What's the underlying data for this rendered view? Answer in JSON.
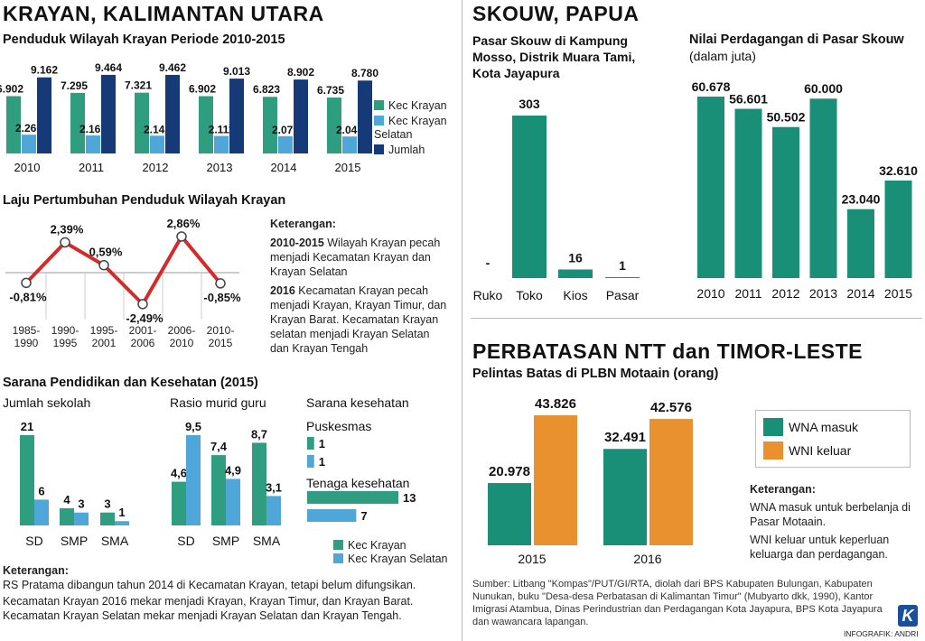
{
  "colors": {
    "green": "#2f9e80",
    "lightblue": "#4fa6d9",
    "navy": "#163a78",
    "orange": "#e8912e",
    "teal": "#1a8f78",
    "red": "#d42a2a"
  },
  "left": {
    "title": "KRAYAN, KALIMANTAN UTARA",
    "pop_title": "Penduduk Wilayah Krayan Periode 2010-2015",
    "growth_title": "Laju Pertumbuhan Penduduk Wilayah Krayan",
    "growth_note_title": "Keterangan:",
    "growth_note_1_year": "2010-2015",
    "growth_note_1_text": " Wilayah Krayan pecah menjadi Kecamatan Krayan dan Krayan Selatan",
    "growth_note_2_year": "2016",
    "growth_note_2_text": " Kecamatan Krayan pecah menjadi Krayan, Krayan Timur, dan Krayan Barat. Kecamatan Krayan selatan menjadi Krayan Selatan dan Krayan Tengah",
    "facility_title": "Sarana Pendidikan dan Kesehatan (2015)",
    "schools_sub": "Jumlah sekolah",
    "ratio_sub": "Rasio murid guru",
    "health_sub": "Sarana kesehatan",
    "puskesmas_label": "Puskesmas",
    "tenaga_label": "Tenaga kesehatan",
    "legend_krayan": "Kec Krayan",
    "legend_krayan_selatan": "Kec Krayan Selatan",
    "bottom_note_title": "Keterangan:",
    "bottom_note_1": "RS Pratama dibangun tahun 2014 di Kecamatan Krayan, tetapi belum difungsikan.",
    "bottom_note_2": "Kecamatan Krayan 2016 mekar menjadi Krayan, Krayan Timur, dan Krayan Barat. Kecamatan Krayan Selatan mekar menjadi Krayan Selatan dan Krayan Tengah."
  },
  "right": {
    "title": "SKOUW, PAPUA",
    "market_title": "Pasar Skouw di Kampung Mosso, Distrik Muara Tami, Kota Jayapura",
    "trade_title": "Nilai Perdagangan di Pasar Skouw",
    "trade_sub": "(dalam juta)",
    "ntt_title": "PERBATASAN NTT dan TIMOR-LESTE",
    "ntt_sub": "Pelintas Batas di PLBN Motaain (orang)",
    "ntt_note_title": "Keterangan:",
    "ntt_note_1": "WNA masuk untuk berbelanja di Pasar Motaain.",
    "ntt_note_2": "WNI keluar untuk keperluan keluarga dan perdagangan.",
    "source": "Sumber: Litbang \"Kompas\"/PUT/GI/RTA, diolah dari BPS Kabupaten Bulungan, Kabupaten Nunukan, buku \"Desa-desa Perbatasan di Kalimantan Timur\" (Mubyarto dkk, 1990), Kantor Imigrasi Atambua, Dinas Perindustrian dan Perdagangan Kota Jayapura, BPS Kota Jayapura dan wawancara lapangan.",
    "credit": "INFOGRAFIK: ANDRI",
    "logo_letter": "K"
  },
  "chart_data": [
    {
      "id": "population",
      "type": "bar",
      "title": "Penduduk Wilayah Krayan Periode 2010-2015",
      "categories": [
        "2010",
        "2011",
        "2012",
        "2013",
        "2014",
        "2015"
      ],
      "series": [
        {
          "name": "Kec Krayan",
          "color": "#2f9e80",
          "values": [
            6902,
            7295,
            7321,
            6902,
            6823,
            6735
          ],
          "labels": [
            "6.902",
            "7.295",
            "7.321",
            "6.902",
            "6.823",
            "6.735"
          ]
        },
        {
          "name": "Kec Krayan Selatan",
          "color": "#4fa6d9",
          "values": [
            2260,
            2169,
            2141,
            2111,
            2079,
            2045
          ],
          "labels": [
            "2.260",
            "2.169",
            "2.141",
            "2.111",
            "2.079",
            "2.045"
          ]
        },
        {
          "name": "Jumlah",
          "color": "#163a78",
          "values": [
            9162,
            9464,
            9462,
            9013,
            8902,
            8780
          ],
          "labels": [
            "9.162",
            "9.464",
            "9.462",
            "9.013",
            "8.902",
            "8.780"
          ]
        }
      ],
      "legend": [
        "Kec Krayan",
        "Kec Krayan Selatan",
        "Jumlah"
      ]
    },
    {
      "id": "growth",
      "type": "line",
      "title": "Laju Pertumbuhan Penduduk Wilayah Krayan",
      "categories": [
        "1985-1990",
        "1990-1995",
        "1995-2001",
        "2001-2006",
        "2006-2010",
        "2010-2015"
      ],
      "values": [
        -0.81,
        2.39,
        0.59,
        -2.49,
        2.86,
        -0.85
      ],
      "labels": [
        "-0,81%",
        "2,39%",
        "0,59%",
        "-2,49%",
        "2,86%",
        "-0,85%"
      ]
    },
    {
      "id": "schools",
      "type": "bar",
      "title": "Jumlah sekolah",
      "categories": [
        "SD",
        "SMP",
        "SMA"
      ],
      "series": [
        {
          "name": "Kec Krayan",
          "values": [
            21,
            4,
            3
          ],
          "labels": [
            "21",
            "4",
            "3"
          ]
        },
        {
          "name": "Kec Krayan Selatan",
          "values": [
            6,
            3,
            1
          ],
          "labels": [
            "6",
            "3",
            "1"
          ]
        }
      ]
    },
    {
      "id": "ratio",
      "type": "bar",
      "title": "Rasio murid guru",
      "categories": [
        "SD",
        "SMP",
        "SMA"
      ],
      "series": [
        {
          "name": "Kec Krayan",
          "values": [
            4.6,
            7.4,
            8.7
          ],
          "labels": [
            "4,6",
            "7,4",
            "8,7"
          ]
        },
        {
          "name": "Kec Krayan Selatan",
          "values": [
            9.5,
            4.9,
            3.1
          ],
          "labels": [
            "9,5",
            "4,9",
            "3,1"
          ]
        }
      ]
    },
    {
      "id": "health",
      "type": "bar",
      "title": "Sarana kesehatan",
      "categories": [
        "Puskesmas",
        "Tenaga kesehatan"
      ],
      "series": [
        {
          "name": "Kec Krayan",
          "values": [
            1,
            13
          ],
          "labels": [
            "1",
            "13"
          ]
        },
        {
          "name": "Kec Krayan Selatan",
          "values": [
            1,
            7
          ],
          "labels": [
            "1",
            "7"
          ]
        }
      ]
    },
    {
      "id": "market",
      "type": "bar",
      "title": "Pasar Skouw di Kampung Mosso, Distrik Muara Tami, Kota Jayapura",
      "categories": [
        "Ruko",
        "Toko",
        "Kios",
        "Pasar"
      ],
      "values": [
        0,
        303,
        16,
        1
      ],
      "labels": [
        "-",
        "303",
        "16",
        "1"
      ]
    },
    {
      "id": "trade",
      "type": "bar",
      "title": "Nilai Perdagangan di Pasar Skouw",
      "subtitle": "(dalam juta)",
      "categories": [
        "2010",
        "2011",
        "2012",
        "2013",
        "2014",
        "2015"
      ],
      "values": [
        60678,
        56601,
        50502,
        60000,
        23040,
        32610
      ],
      "labels": [
        "60.678",
        "56.601",
        "50.502",
        "60.000",
        "23.040",
        "32.610"
      ]
    },
    {
      "id": "border",
      "type": "bar",
      "title": "Pelintas Batas di PLBN Motaain (orang)",
      "categories": [
        "2015",
        "2016"
      ],
      "series": [
        {
          "name": "WNA masuk",
          "color": "#1a8f78",
          "values": [
            20978,
            32491
          ],
          "labels": [
            "20.978",
            "32.491"
          ]
        },
        {
          "name": "WNI keluar",
          "color": "#e8912e",
          "values": [
            43826,
            42576
          ],
          "labels": [
            "43.826",
            "42.576"
          ]
        }
      ],
      "legend": [
        "WNA masuk",
        "WNI keluar"
      ]
    }
  ]
}
